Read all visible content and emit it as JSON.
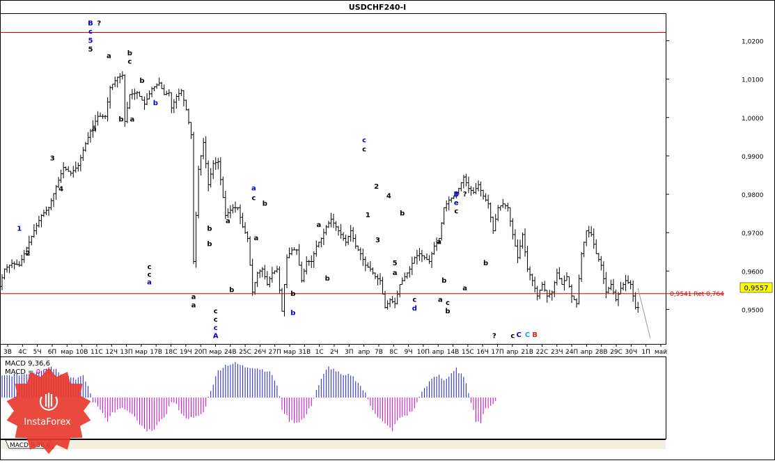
{
  "colors": {
    "candles": "#000000",
    "resistance_line": "#cc0000",
    "price_tag_bg": "#ffff00",
    "macd_positive": "#1c1cd0",
    "macd_negative": "#cc00cc",
    "wave_blue": "#0000cc",
    "wave_cyan": "#1ea3e0",
    "wave_red": "#e81c1c",
    "logo_red": "#e83a2e"
  },
  "chart_data": {
    "type": "candlestick",
    "title": "USDCHF240-I",
    "ylim": [
      0.941,
      1.027
    ],
    "yticks": [
      "1,0200",
      "1,0100",
      "1,0000",
      "0,9900",
      "0,9800",
      "0,9700",
      "0,9600",
      "0,9500"
    ],
    "yticks_values": [
      1.02,
      1.01,
      1.0,
      0.99,
      0.98,
      0.97,
      0.96,
      0.95
    ],
    "xticks": [
      "3В",
      "4С",
      "5Ч",
      "6П",
      "мар",
      "10В",
      "11С",
      "12Ч",
      "13П",
      "мар",
      "17В",
      "18С",
      "19Ч",
      "20П",
      "мар",
      "24В",
      "25С",
      "26Ч",
      "27П",
      "мар",
      "31В",
      "1С",
      "2Ч",
      "3П",
      "апр",
      "7В",
      "8С",
      "9Ч",
      "10П",
      "апр",
      "14В",
      "15С",
      "16Ч",
      "17П",
      "апр",
      "21В",
      "22С",
      "23Ч",
      "24П",
      "апр",
      "28В",
      "29С",
      "30Ч",
      "1П",
      "май"
    ],
    "current_price": "0,9557",
    "current_price_value": 0.9557,
    "level_line": {
      "value": 0.9541,
      "label": "0,9541 Ret 0,764"
    },
    "top_line_value": 1.0222,
    "price_path": [
      [
        0,
        0.956
      ],
      [
        4,
        0.9605
      ],
      [
        10,
        0.962
      ],
      [
        16,
        0.9615
      ],
      [
        22,
        0.966
      ],
      [
        28,
        0.9705
      ],
      [
        34,
        0.9745
      ],
      [
        40,
        0.9765
      ],
      [
        46,
        0.982
      ],
      [
        52,
        0.987
      ],
      [
        58,
        0.9855
      ],
      [
        64,
        0.9875
      ],
      [
        68,
        0.9915
      ],
      [
        74,
        0.9965
      ],
      [
        80,
        1.0003
      ],
      [
        86,
        1.0003
      ],
      [
        90,
        1.0078
      ],
      [
        96,
        1.0105
      ],
      [
        100,
        1.011
      ],
      [
        102,
        0.999
      ],
      [
        106,
        1.006
      ],
      [
        112,
        1.0065
      ],
      [
        118,
        1.0035
      ],
      [
        124,
        1.0075
      ],
      [
        130,
        1.009
      ],
      [
        134,
        1.006
      ],
      [
        138,
        1.0065
      ],
      [
        140,
        1.0025
      ],
      [
        144,
        1.0055
      ],
      [
        148,
        1.007
      ],
      [
        152,
        1.002
      ],
      [
        156,
        0.9955
      ],
      [
        158,
        0.9625
      ],
      [
        162,
        0.9865
      ],
      [
        166,
        0.9935
      ],
      [
        170,
        0.9825
      ],
      [
        174,
        0.988
      ],
      [
        178,
        0.9885
      ],
      [
        184,
        0.9745
      ],
      [
        190,
        0.9765
      ],
      [
        194,
        0.9765
      ],
      [
        198,
        0.9715
      ],
      [
        202,
        0.9685
      ],
      [
        206,
        0.9545
      ],
      [
        210,
        0.9595
      ],
      [
        214,
        0.9605
      ],
      [
        218,
        0.9565
      ],
      [
        222,
        0.9595
      ],
      [
        226,
        0.9605
      ],
      [
        230,
        0.9495
      ],
      [
        234,
        0.9635
      ],
      [
        238,
        0.9655
      ],
      [
        242,
        0.9655
      ],
      [
        246,
        0.9575
      ],
      [
        250,
        0.9625
      ],
      [
        254,
        0.9625
      ],
      [
        258,
        0.9665
      ],
      [
        262,
        0.9685
      ],
      [
        266,
        0.9715
      ],
      [
        270,
        0.9735
      ],
      [
        274,
        0.9715
      ],
      [
        278,
        0.9695
      ],
      [
        282,
        0.9675
      ],
      [
        286,
        0.9705
      ],
      [
        290,
        0.9665
      ],
      [
        294,
        0.9645
      ],
      [
        298,
        0.9615
      ],
      [
        302,
        0.9605
      ],
      [
        306,
        0.9585
      ],
      [
        310,
        0.9575
      ],
      [
        314,
        0.9505
      ],
      [
        318,
        0.9525
      ],
      [
        322,
        0.9515
      ],
      [
        326,
        0.9565
      ],
      [
        330,
        0.9585
      ],
      [
        334,
        0.9605
      ],
      [
        338,
        0.9635
      ],
      [
        342,
        0.9645
      ],
      [
        346,
        0.9635
      ],
      [
        350,
        0.9625
      ],
      [
        354,
        0.9665
      ],
      [
        358,
        0.9685
      ],
      [
        362,
        0.9765
      ],
      [
        366,
        0.9785
      ],
      [
        370,
        0.9795
      ],
      [
        374,
        0.9815
      ],
      [
        378,
        0.9845
      ],
      [
        382,
        0.9815
      ],
      [
        386,
        0.9805
      ],
      [
        390,
        0.9825
      ],
      [
        394,
        0.9795
      ],
      [
        398,
        0.9775
      ],
      [
        402,
        0.9705
      ],
      [
        406,
        0.9765
      ],
      [
        410,
        0.9775
      ],
      [
        414,
        0.9765
      ],
      [
        418,
        0.9695
      ],
      [
        422,
        0.9635
      ],
      [
        426,
        0.9695
      ],
      [
        430,
        0.9605
      ],
      [
        434,
        0.9575
      ],
      [
        438,
        0.9535
      ],
      [
        442,
        0.9565
      ],
      [
        446,
        0.9535
      ],
      [
        450,
        0.9545
      ],
      [
        454,
        0.9595
      ],
      [
        458,
        0.9565
      ],
      [
        462,
        0.9585
      ],
      [
        466,
        0.9535
      ],
      [
        470,
        0.9515
      ],
      [
        474,
        0.9645
      ],
      [
        478,
        0.9705
      ],
      [
        482,
        0.9695
      ],
      [
        486,
        0.9645
      ],
      [
        490,
        0.9615
      ],
      [
        494,
        0.9545
      ],
      [
        498,
        0.9565
      ],
      [
        502,
        0.9525
      ],
      [
        506,
        0.9555
      ],
      [
        510,
        0.9575
      ],
      [
        514,
        0.9565
      ],
      [
        518,
        0.9505
      ]
    ],
    "projection": [
      [
        518,
        0.9555
      ],
      [
        528,
        0.9425
      ]
    ],
    "wave_labels": [
      {
        "t": "B",
        "x": 72,
        "y": 1.024,
        "c": "wave_blue"
      },
      {
        "t": "c",
        "x": 72,
        "y": 1.0218,
        "c": "wave_blue"
      },
      {
        "t": "5",
        "x": 72,
        "y": 1.0195,
        "c": "wave_blue"
      },
      {
        "t": "5",
        "x": 72,
        "y": 1.0172,
        "c": "black"
      },
      {
        "t": "?",
        "x": 79,
        "y": 1.024,
        "c": "black"
      },
      {
        "t": "a",
        "x": 87,
        "y": 1.0155,
        "c": "black"
      },
      {
        "t": "b",
        "x": 104,
        "y": 1.0162,
        "c": "black"
      },
      {
        "t": "c",
        "x": 104,
        "y": 1.014,
        "c": "black"
      },
      {
        "t": "b",
        "x": 114,
        "y": 1.009,
        "c": "black"
      },
      {
        "t": "b",
        "x": 97,
        "y": 0.999,
        "c": "black"
      },
      {
        "t": "a",
        "x": 106,
        "y": 0.999,
        "c": "black"
      },
      {
        "t": "a",
        "x": 75,
        "y": 0.9965,
        "c": "black"
      },
      {
        "t": "b",
        "x": 125,
        "y": 1.0032,
        "c": "wave_blue"
      },
      {
        "t": "3",
        "x": 41,
        "y": 0.9888,
        "c": "black"
      },
      {
        "t": "4",
        "x": 48,
        "y": 0.9808,
        "c": "black"
      },
      {
        "t": "1",
        "x": 14,
        "y": 0.9705,
        "c": "wave_blue"
      },
      {
        "t": "2",
        "x": 21,
        "y": 0.964,
        "c": "black"
      },
      {
        "t": "c",
        "x": 120,
        "y": 0.9605,
        "c": "black"
      },
      {
        "t": "c",
        "x": 120,
        "y": 0.9585,
        "c": "black"
      },
      {
        "t": "a",
        "x": 120,
        "y": 0.9565,
        "c": "wave_blue"
      },
      {
        "t": "b",
        "x": 169,
        "y": 0.9705,
        "c": "black"
      },
      {
        "t": "b",
        "x": 169,
        "y": 0.9665,
        "c": "black"
      },
      {
        "t": "a",
        "x": 184,
        "y": 0.9725,
        "c": "black"
      },
      {
        "t": "a",
        "x": 156,
        "y": 0.9527,
        "c": "black"
      },
      {
        "t": "a",
        "x": 156,
        "y": 0.9505,
        "c": "black"
      },
      {
        "t": "b",
        "x": 187,
        "y": 0.9545,
        "c": "black"
      },
      {
        "t": "c",
        "x": 174,
        "y": 0.949,
        "c": "black"
      },
      {
        "t": "c",
        "x": 174,
        "y": 0.9468,
        "c": "black"
      },
      {
        "t": "c",
        "x": 174,
        "y": 0.9446,
        "c": "wave_blue"
      },
      {
        "t": "A",
        "x": 174,
        "y": 0.9425,
        "c": "wave_blue"
      },
      {
        "t": "a",
        "x": 205,
        "y": 0.981,
        "c": "wave_blue"
      },
      {
        "t": "c",
        "x": 205,
        "y": 0.9785,
        "c": "black"
      },
      {
        "t": "b",
        "x": 214,
        "y": 0.977,
        "c": "black"
      },
      {
        "t": "a",
        "x": 207,
        "y": 0.968,
        "c": "black"
      },
      {
        "t": "b",
        "x": 237,
        "y": 0.9535,
        "c": "black"
      },
      {
        "t": "b",
        "x": 237,
        "y": 0.9485,
        "c": "wave_blue"
      },
      {
        "t": "a",
        "x": 258,
        "y": 0.9715,
        "c": "black"
      },
      {
        "t": "b",
        "x": 265,
        "y": 0.9575,
        "c": "black"
      },
      {
        "t": "c",
        "x": 295,
        "y": 0.9935,
        "c": "wave_blue"
      },
      {
        "t": "c",
        "x": 295,
        "y": 0.9912,
        "c": "black"
      },
      {
        "t": "2",
        "x": 305,
        "y": 0.9815,
        "c": "black"
      },
      {
        "t": "1",
        "x": 298,
        "y": 0.974,
        "c": "black"
      },
      {
        "t": "4",
        "x": 315,
        "y": 0.979,
        "c": "black"
      },
      {
        "t": "b",
        "x": 326,
        "y": 0.9745,
        "c": "black"
      },
      {
        "t": "3",
        "x": 306,
        "y": 0.9675,
        "c": "black"
      },
      {
        "t": "5",
        "x": 320,
        "y": 0.9615,
        "c": "black"
      },
      {
        "t": "a",
        "x": 320,
        "y": 0.959,
        "c": "black"
      },
      {
        "t": "c",
        "x": 336,
        "y": 0.952,
        "c": "black"
      },
      {
        "t": "d",
        "x": 336,
        "y": 0.9497,
        "c": "wave_blue"
      },
      {
        "t": "a",
        "x": 356,
        "y": 0.967,
        "c": "black"
      },
      {
        "t": "b",
        "x": 360,
        "y": 0.957,
        "c": "black"
      },
      {
        "t": "a",
        "x": 357,
        "y": 0.952,
        "c": "black"
      },
      {
        "t": "c",
        "x": 363,
        "y": 0.9512,
        "c": "black"
      },
      {
        "t": "b",
        "x": 363,
        "y": 0.949,
        "c": "black"
      },
      {
        "t": "B",
        "x": 370,
        "y": 0.9795,
        "c": "wave_blue"
      },
      {
        "t": "e",
        "x": 370,
        "y": 0.9772,
        "c": "wave_blue"
      },
      {
        "t": "c",
        "x": 370,
        "y": 0.975,
        "c": "black"
      },
      {
        "t": "?",
        "x": 377,
        "y": 0.9795,
        "c": "black"
      },
      {
        "t": "b",
        "x": 394,
        "y": 0.9615,
        "c": "black"
      },
      {
        "t": "a",
        "x": 377,
        "y": 0.955,
        "c": "black"
      },
      {
        "t": "?",
        "x": 401,
        "y": 0.9425,
        "c": "black"
      },
      {
        "t": "c",
        "x": 416,
        "y": 0.9425,
        "c": "black"
      },
      {
        "t": "C",
        "x": 421,
        "y": 0.9428,
        "c": "wave_blue"
      },
      {
        "t": "C",
        "x": 428,
        "y": 0.9428,
        "c": "wave_cyan"
      },
      {
        "t": "B",
        "x": 434,
        "y": 0.9428,
        "c": "wave_red"
      }
    ],
    "macd": {
      "label_line1": "MACD 9,36,6",
      "label_line2_prefix": "MACD = ",
      "label_line2_value": "0,00",
      "bottom_label": "MACD 9,36,6",
      "series_path": [
        [
          0,
          0.0055
        ],
        [
          10,
          0.006
        ],
        [
          20,
          0.0062
        ],
        [
          30,
          0.007
        ],
        [
          40,
          0.0082
        ],
        [
          50,
          0.006
        ],
        [
          60,
          0.005
        ],
        [
          66,
          0.0055
        ],
        [
          70,
          0.003
        ],
        [
          74,
          -0.001
        ],
        [
          80,
          -0.003
        ],
        [
          86,
          -0.006
        ],
        [
          90,
          -0.004
        ],
        [
          96,
          -0.003
        ],
        [
          100,
          -0.003
        ],
        [
          106,
          -0.0045
        ],
        [
          112,
          -0.007
        ],
        [
          118,
          -0.009
        ],
        [
          124,
          -0.008
        ],
        [
          130,
          -0.006
        ],
        [
          134,
          -0.004
        ],
        [
          138,
          -0.001
        ],
        [
          142,
          -0.002
        ],
        [
          148,
          -0.005
        ],
        [
          156,
          -0.0055
        ],
        [
          164,
          -0.004
        ],
        [
          170,
          0.002
        ],
        [
          176,
          0.007
        ],
        [
          182,
          0.0085
        ],
        [
          190,
          0.009
        ],
        [
          198,
          0.008
        ],
        [
          204,
          0.008
        ],
        [
          210,
          0.0075
        ],
        [
          216,
          0.007
        ],
        [
          220,
          0.006
        ],
        [
          224,
          0.003
        ],
        [
          228,
          -0.003
        ],
        [
          234,
          -0.006
        ],
        [
          240,
          -0.0065
        ],
        [
          246,
          -0.0055
        ],
        [
          252,
          -0.002
        ],
        [
          256,
          0.002
        ],
        [
          262,
          0.006
        ],
        [
          266,
          0.008
        ],
        [
          272,
          0.007
        ],
        [
          278,
          0.0055
        ],
        [
          284,
          0.006
        ],
        [
          290,
          0.004
        ],
        [
          296,
          0.001
        ],
        [
          300,
          -0.002
        ],
        [
          306,
          -0.005
        ],
        [
          312,
          -0.007
        ],
        [
          318,
          -0.0085
        ],
        [
          322,
          -0.006
        ],
        [
          326,
          -0.005
        ],
        [
          330,
          -0.0045
        ],
        [
          336,
          -0.003
        ],
        [
          340,
          0.0005
        ],
        [
          346,
          0.003
        ],
        [
          350,
          0.005
        ],
        [
          356,
          0.006
        ],
        [
          360,
          0.0045
        ],
        [
          366,
          0.006
        ],
        [
          370,
          0.0075
        ],
        [
          374,
          0.006
        ],
        [
          378,
          0.004
        ],
        [
          382,
          -0.001
        ],
        [
          386,
          -0.006
        ],
        [
          390,
          -0.0065
        ],
        [
          394,
          -0.003
        ],
        [
          398,
          -0.002
        ],
        [
          402,
          -0.001
        ]
      ]
    },
    "logo_text": "InstaForex"
  }
}
